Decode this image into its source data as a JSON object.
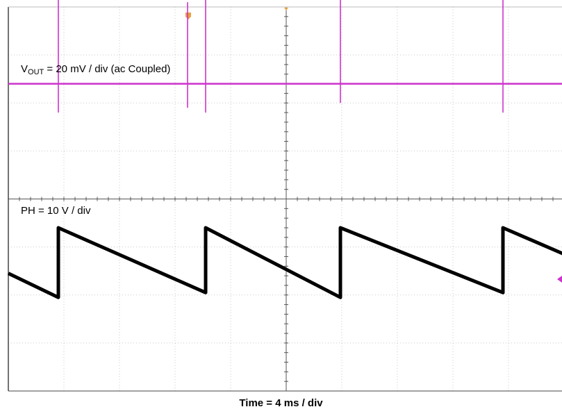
{
  "chart_data": {
    "type": "line",
    "title": "",
    "xlabel": "Time = 4 ms / div",
    "ylabel": "",
    "grid": true,
    "x_unit": "ms",
    "x_per_div": 4,
    "x_divisions": 10,
    "y_divisions": 8,
    "xlim": [
      0,
      40
    ],
    "channel_labels": {
      "vout_prefix": "V",
      "vout_sub": "OUT",
      "vout_rest": " = 20 mV / div (ac Coupled)",
      "ph": "PH = 10 V / div"
    },
    "series": [
      {
        "name": "VOUT",
        "color": "#000000",
        "unit": "mV",
        "volts_per_div": 20,
        "reference_div": 5,
        "x": [
          0,
          3.6,
          3.6,
          14.2,
          14.2,
          23.9,
          23.9,
          35.6,
          35.6,
          40
        ],
        "y": [
          -11,
          -21,
          8,
          -19,
          8,
          -21,
          8,
          -19,
          8,
          -3
        ]
      },
      {
        "name": "PH",
        "color": "#cc33cc",
        "unit": "V",
        "volts_per_div": 10,
        "reference_div": 1.6,
        "baseline": 0,
        "spikes": [
          {
            "t": 3.6,
            "high": 18,
            "low": -6
          },
          {
            "t": 12.9,
            "high": 17,
            "low": -5
          },
          {
            "t": 14.2,
            "high": 21,
            "low": -6
          },
          {
            "t": 23.9,
            "high": 20,
            "low": -4
          },
          {
            "t": 35.6,
            "high": 21,
            "low": -6
          }
        ]
      }
    ],
    "markers": {
      "trigger_time_color": "#e8a040",
      "trigger_level_color": "#cc33cc"
    }
  }
}
